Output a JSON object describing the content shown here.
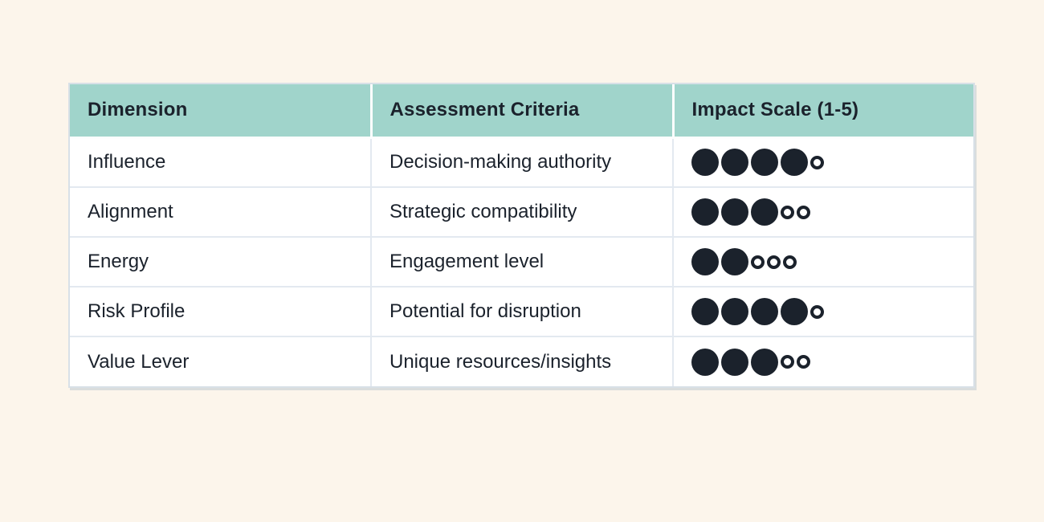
{
  "page": {
    "background_color": "#FCF5EB"
  },
  "table": {
    "columns": [
      {
        "label": "Dimension"
      },
      {
        "label": "Assessment Criteria"
      },
      {
        "label": "Impact Scale (1-5)"
      }
    ],
    "impact_max": 5,
    "rows": [
      {
        "dimension": "Influence",
        "criteria": "Decision-making authority",
        "impact": 4
      },
      {
        "dimension": "Alignment",
        "criteria": "Strategic compatibility",
        "impact": 3
      },
      {
        "dimension": "Energy",
        "criteria": "Engagement level",
        "impact": 2
      },
      {
        "dimension": "Risk Profile",
        "criteria": "Potential for disruption",
        "impact": 4
      },
      {
        "dimension": "Value Lever",
        "criteria": "Unique resources/insights",
        "impact": 3
      }
    ],
    "colors": {
      "header_bg": "#A0D4CB",
      "text": "#1B222C",
      "dot": "#1B222C",
      "grid": "#E3E9F0",
      "frame": "#D8E0E7",
      "page_bg": "#FCF5EB"
    }
  },
  "chart_data": {
    "type": "table",
    "title": "",
    "columns": [
      "Dimension",
      "Assessment Criteria",
      "Impact Scale (1-5)"
    ],
    "rows": [
      [
        "Influence",
        "Decision-making authority",
        4
      ],
      [
        "Alignment",
        "Strategic compatibility",
        3
      ],
      [
        "Energy",
        "Engagement level",
        2
      ],
      [
        "Risk Profile",
        "Potential for disruption",
        4
      ],
      [
        "Value Lever",
        "Unique resources/insights",
        3
      ]
    ],
    "impact_scale": {
      "min": 1,
      "max": 5,
      "glyph_filled": "●",
      "glyph_empty": "○"
    }
  }
}
